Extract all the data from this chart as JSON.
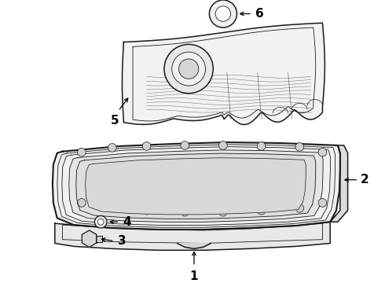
{
  "bg_color": "#ffffff",
  "line_color": "#1a1a1a",
  "label_color": "#000000",
  "lw_main": 1.1,
  "lw_thin": 0.6,
  "lw_thick": 1.5
}
